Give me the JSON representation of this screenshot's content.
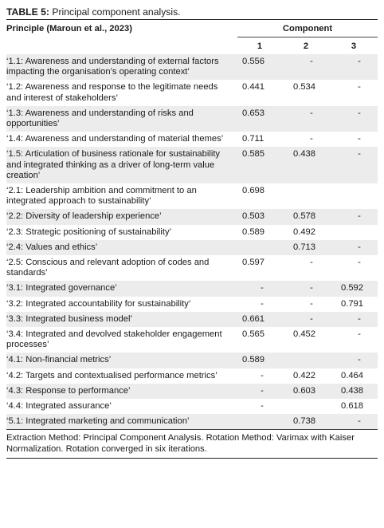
{
  "caption": {
    "label": "TABLE 5:",
    "text": " Principal component analysis."
  },
  "header": {
    "principle": "Principle (Maroun et al., 2023)",
    "component": "Component",
    "cols": [
      "1",
      "2",
      "3"
    ]
  },
  "rows": [
    {
      "principle": "‘1.1: Awareness and understanding of external factors impacting the organisation’s operating context’",
      "c1": "0.556",
      "c2": "-",
      "c3": "-",
      "shade": true
    },
    {
      "principle": "‘1.2: Awareness and response to the legitimate needs and interest of stakeholders’",
      "c1": "0.441",
      "c2": "0.534",
      "c3": "-",
      "shade": false
    },
    {
      "principle": "‘1.3: Awareness and understanding of risks and opportunities’",
      "c1": "0.653",
      "c2": "-",
      "c3": "-",
      "shade": true
    },
    {
      "principle": "‘1.4: Awareness and understanding of material themes’",
      "c1": "0.711",
      "c2": "-",
      "c3": "-",
      "shade": false
    },
    {
      "principle": "‘1.5: Articulation of business rationale for sustainability and integrated thinking as a driver of long-term value creation’",
      "c1": "0.585",
      "c2": "0.438",
      "c3": "-",
      "shade": true
    },
    {
      "principle": "‘2.1: Leadership ambition and commitment to an integrated approach to sustainability’",
      "c1": "0.698",
      "c2": "",
      "c3": "",
      "shade": false
    },
    {
      "principle": "‘2.2: Diversity of leadership experience’",
      "c1": "0.503",
      "c2": "0.578",
      "c3": "-",
      "shade": true
    },
    {
      "principle": "‘2.3: Strategic positioning of sustainability’",
      "c1": "0.589",
      "c2": "0.492",
      "c3": "",
      "shade": false
    },
    {
      "principle": "‘2.4: Values and ethics’",
      "c1": "",
      "c2": "0.713",
      "c3": "-",
      "shade": true
    },
    {
      "principle": "‘2.5: Conscious and relevant adoption of codes and standards’",
      "c1": "0.597",
      "c2": "-",
      "c3": "-",
      "shade": false
    },
    {
      "principle": "‘3.1: Integrated governance’",
      "c1": "-",
      "c2": "-",
      "c3": "0.592",
      "shade": true
    },
    {
      "principle": "‘3.2: Integrated accountability for sustainability’",
      "c1": "-",
      "c2": "-",
      "c3": "0.791",
      "shade": false
    },
    {
      "principle": "‘3.3: Integrated business model’",
      "c1": "0.661",
      "c2": "-",
      "c3": "-",
      "shade": true
    },
    {
      "principle": "‘3.4: Integrated and devolved stakeholder engagement processes’",
      "c1": "0.565",
      "c2": "0.452",
      "c3": "-",
      "shade": false
    },
    {
      "principle": "‘4.1: Non-financial metrics’",
      "c1": "0.589",
      "c2": "",
      "c3": "-",
      "shade": true
    },
    {
      "principle": "‘4.2: Targets and contextualised performance metrics’",
      "c1": "-",
      "c2": "0.422",
      "c3": "0.464",
      "shade": false
    },
    {
      "principle": "‘4.3: Response to performance’",
      "c1": "-",
      "c2": "0.603",
      "c3": "0.438",
      "shade": true
    },
    {
      "principle": "‘4.4: Integrated assurance’",
      "c1": "-",
      "c2": "",
      "c3": "0.618",
      "shade": false
    },
    {
      "principle": "‘5.1: Integrated marketing and communication’",
      "c1": "",
      "c2": "0.738",
      "c3": "-",
      "shade": true
    }
  ],
  "footnote": "Extraction Method: Principal Component Analysis. Rotation Method: Varimax with Kaiser Normalization. Rotation converged in six iterations."
}
